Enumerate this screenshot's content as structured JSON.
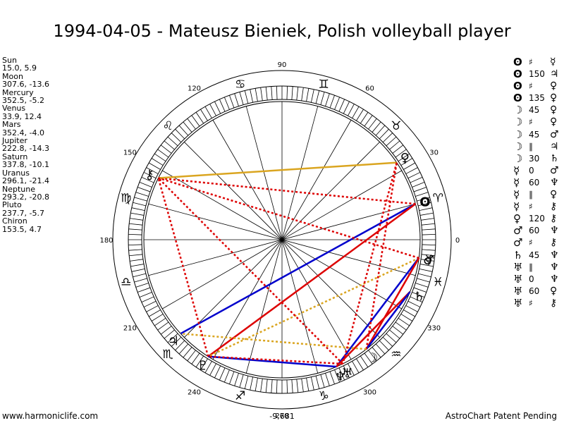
{
  "title": "1994-04-05 - Mateusz Bieniek, Polish volleyball player",
  "planets": [
    {
      "name": "Sun",
      "coords": "15.0, 5.9"
    },
    {
      "name": "Moon",
      "coords": "307.6, -13.6"
    },
    {
      "name": "Mercury",
      "coords": "352.5, -5.2"
    },
    {
      "name": "Venus",
      "coords": "33.9, 12.4"
    },
    {
      "name": "Mars",
      "coords": "352.4, -4.0"
    },
    {
      "name": "Jupiter",
      "coords": "222.8, -14.3"
    },
    {
      "name": "Saturn",
      "coords": "337.8, -10.1"
    },
    {
      "name": "Uranus",
      "coords": "296.1, -21.4"
    },
    {
      "name": "Neptune",
      "coords": "293.2, -20.8"
    },
    {
      "name": "Pluto",
      "coords": "237.7, -5.7"
    },
    {
      "name": "Chiron",
      "coords": "153.5, 4.7"
    }
  ],
  "aspects": [
    {
      "p1": "ʘ",
      "asp": "♯",
      "p2": "☿"
    },
    {
      "p1": "ʘ",
      "asp": "150",
      "p2": "♃"
    },
    {
      "p1": "ʘ",
      "asp": "♯",
      "p2": "♀"
    },
    {
      "p1": "ʘ",
      "asp": "135",
      "p2": "♀"
    },
    {
      "p1": "☽",
      "asp": "45",
      "p2": "♀"
    },
    {
      "p1": "☽",
      "asp": "♯",
      "p2": "♀"
    },
    {
      "p1": "☽",
      "asp": "45",
      "p2": "♂"
    },
    {
      "p1": "☽",
      "asp": "∥",
      "p2": "♃"
    },
    {
      "p1": "☽",
      "asp": "30",
      "p2": "♄"
    },
    {
      "p1": "☿",
      "asp": "0",
      "p2": "♂"
    },
    {
      "p1": "☿",
      "asp": "60",
      "p2": "♆"
    },
    {
      "p1": "☿",
      "asp": "∥",
      "p2": "♀"
    },
    {
      "p1": "☿",
      "asp": "♯",
      "p2": "⚷"
    },
    {
      "p1": "♀",
      "asp": "120",
      "p2": "⚷"
    },
    {
      "p1": "♂",
      "asp": "60",
      "p2": "♆"
    },
    {
      "p1": "♂",
      "asp": "♯",
      "p2": "⚷"
    },
    {
      "p1": "♄",
      "asp": "45",
      "p2": "♆"
    },
    {
      "p1": "♅",
      "asp": "∥",
      "p2": "♆"
    },
    {
      "p1": "♅",
      "asp": "0",
      "p2": "♆"
    },
    {
      "p1": "♅",
      "asp": "60",
      "p2": "♀"
    },
    {
      "p1": "♅",
      "asp": "♯",
      "p2": "⚷"
    }
  ],
  "chart_data": {
    "type": "other",
    "degree_labels": [
      "0",
      "30",
      "60",
      "90",
      "120",
      "150",
      "180",
      "210",
      "240",
      "270",
      "300",
      "330"
    ],
    "sign_glyphs": [
      "♈",
      "♉",
      "♊",
      "♋",
      "♌",
      "♍",
      "♎",
      "♏",
      "♐",
      "♑",
      "♒",
      "♓"
    ],
    "planet_positions": [
      {
        "glyph": "ʘ",
        "lon": 15.0
      },
      {
        "glyph": "☽",
        "lon": 307.6
      },
      {
        "glyph": "☿",
        "lon": 352.5
      },
      {
        "glyph": "♀",
        "lon": 33.9
      },
      {
        "glyph": "♂",
        "lon": 352.4
      },
      {
        "glyph": "♃",
        "lon": 222.8
      },
      {
        "glyph": "♄",
        "lon": 337.8
      },
      {
        "glyph": "♅",
        "lon": 296.1
      },
      {
        "glyph": "♆",
        "lon": 293.2
      },
      {
        "glyph": "♇",
        "lon": 237.7
      },
      {
        "glyph": "⚷",
        "lon": 153.5
      }
    ],
    "aspect_lines": [
      {
        "from": 15.0,
        "to": 222.8,
        "color": "#0000cc",
        "style": "solid"
      },
      {
        "from": 15.0,
        "to": 237.7,
        "color": "#dd0000",
        "style": "solid"
      },
      {
        "from": 15.0,
        "to": 153.5,
        "color": "#dd0000",
        "style": "dotted"
      },
      {
        "from": 33.9,
        "to": 153.5,
        "color": "#daa520",
        "style": "solid"
      },
      {
        "from": 237.7,
        "to": 293.2,
        "color": "#0000cc",
        "style": "solid"
      },
      {
        "from": 352.4,
        "to": 237.7,
        "color": "#daa520",
        "style": "dotted"
      },
      {
        "from": 352.5,
        "to": 293.2,
        "color": "#0000cc",
        "style": "solid"
      },
      {
        "from": 337.8,
        "to": 293.2,
        "color": "#dd0000",
        "style": "solid"
      },
      {
        "from": 307.6,
        "to": 352.4,
        "color": "#dd0000",
        "style": "solid"
      },
      {
        "from": 337.8,
        "to": 307.6,
        "color": "#0000cc",
        "style": "solid"
      },
      {
        "from": 307.6,
        "to": 33.9,
        "color": "#dd0000",
        "style": "dotted"
      },
      {
        "from": 307.6,
        "to": 222.8,
        "color": "#daa520",
        "style": "dotted"
      },
      {
        "from": 296.1,
        "to": 153.5,
        "color": "#dd0000",
        "style": "dotted"
      },
      {
        "from": 352.4,
        "to": 153.5,
        "color": "#dd0000",
        "style": "dotted"
      },
      {
        "from": 237.7,
        "to": 153.5,
        "color": "#dd0000",
        "style": "dotted"
      },
      {
        "from": 296.1,
        "to": 237.7,
        "color": "#dd0000",
        "style": "dotted"
      },
      {
        "from": 33.9,
        "to": 296.1,
        "color": "#dd0000",
        "style": "dotted"
      }
    ]
  },
  "score": "-9,681",
  "footer": {
    "website": "www.harmoniclife.com",
    "tagline": "AstroChart Patent Pending"
  }
}
